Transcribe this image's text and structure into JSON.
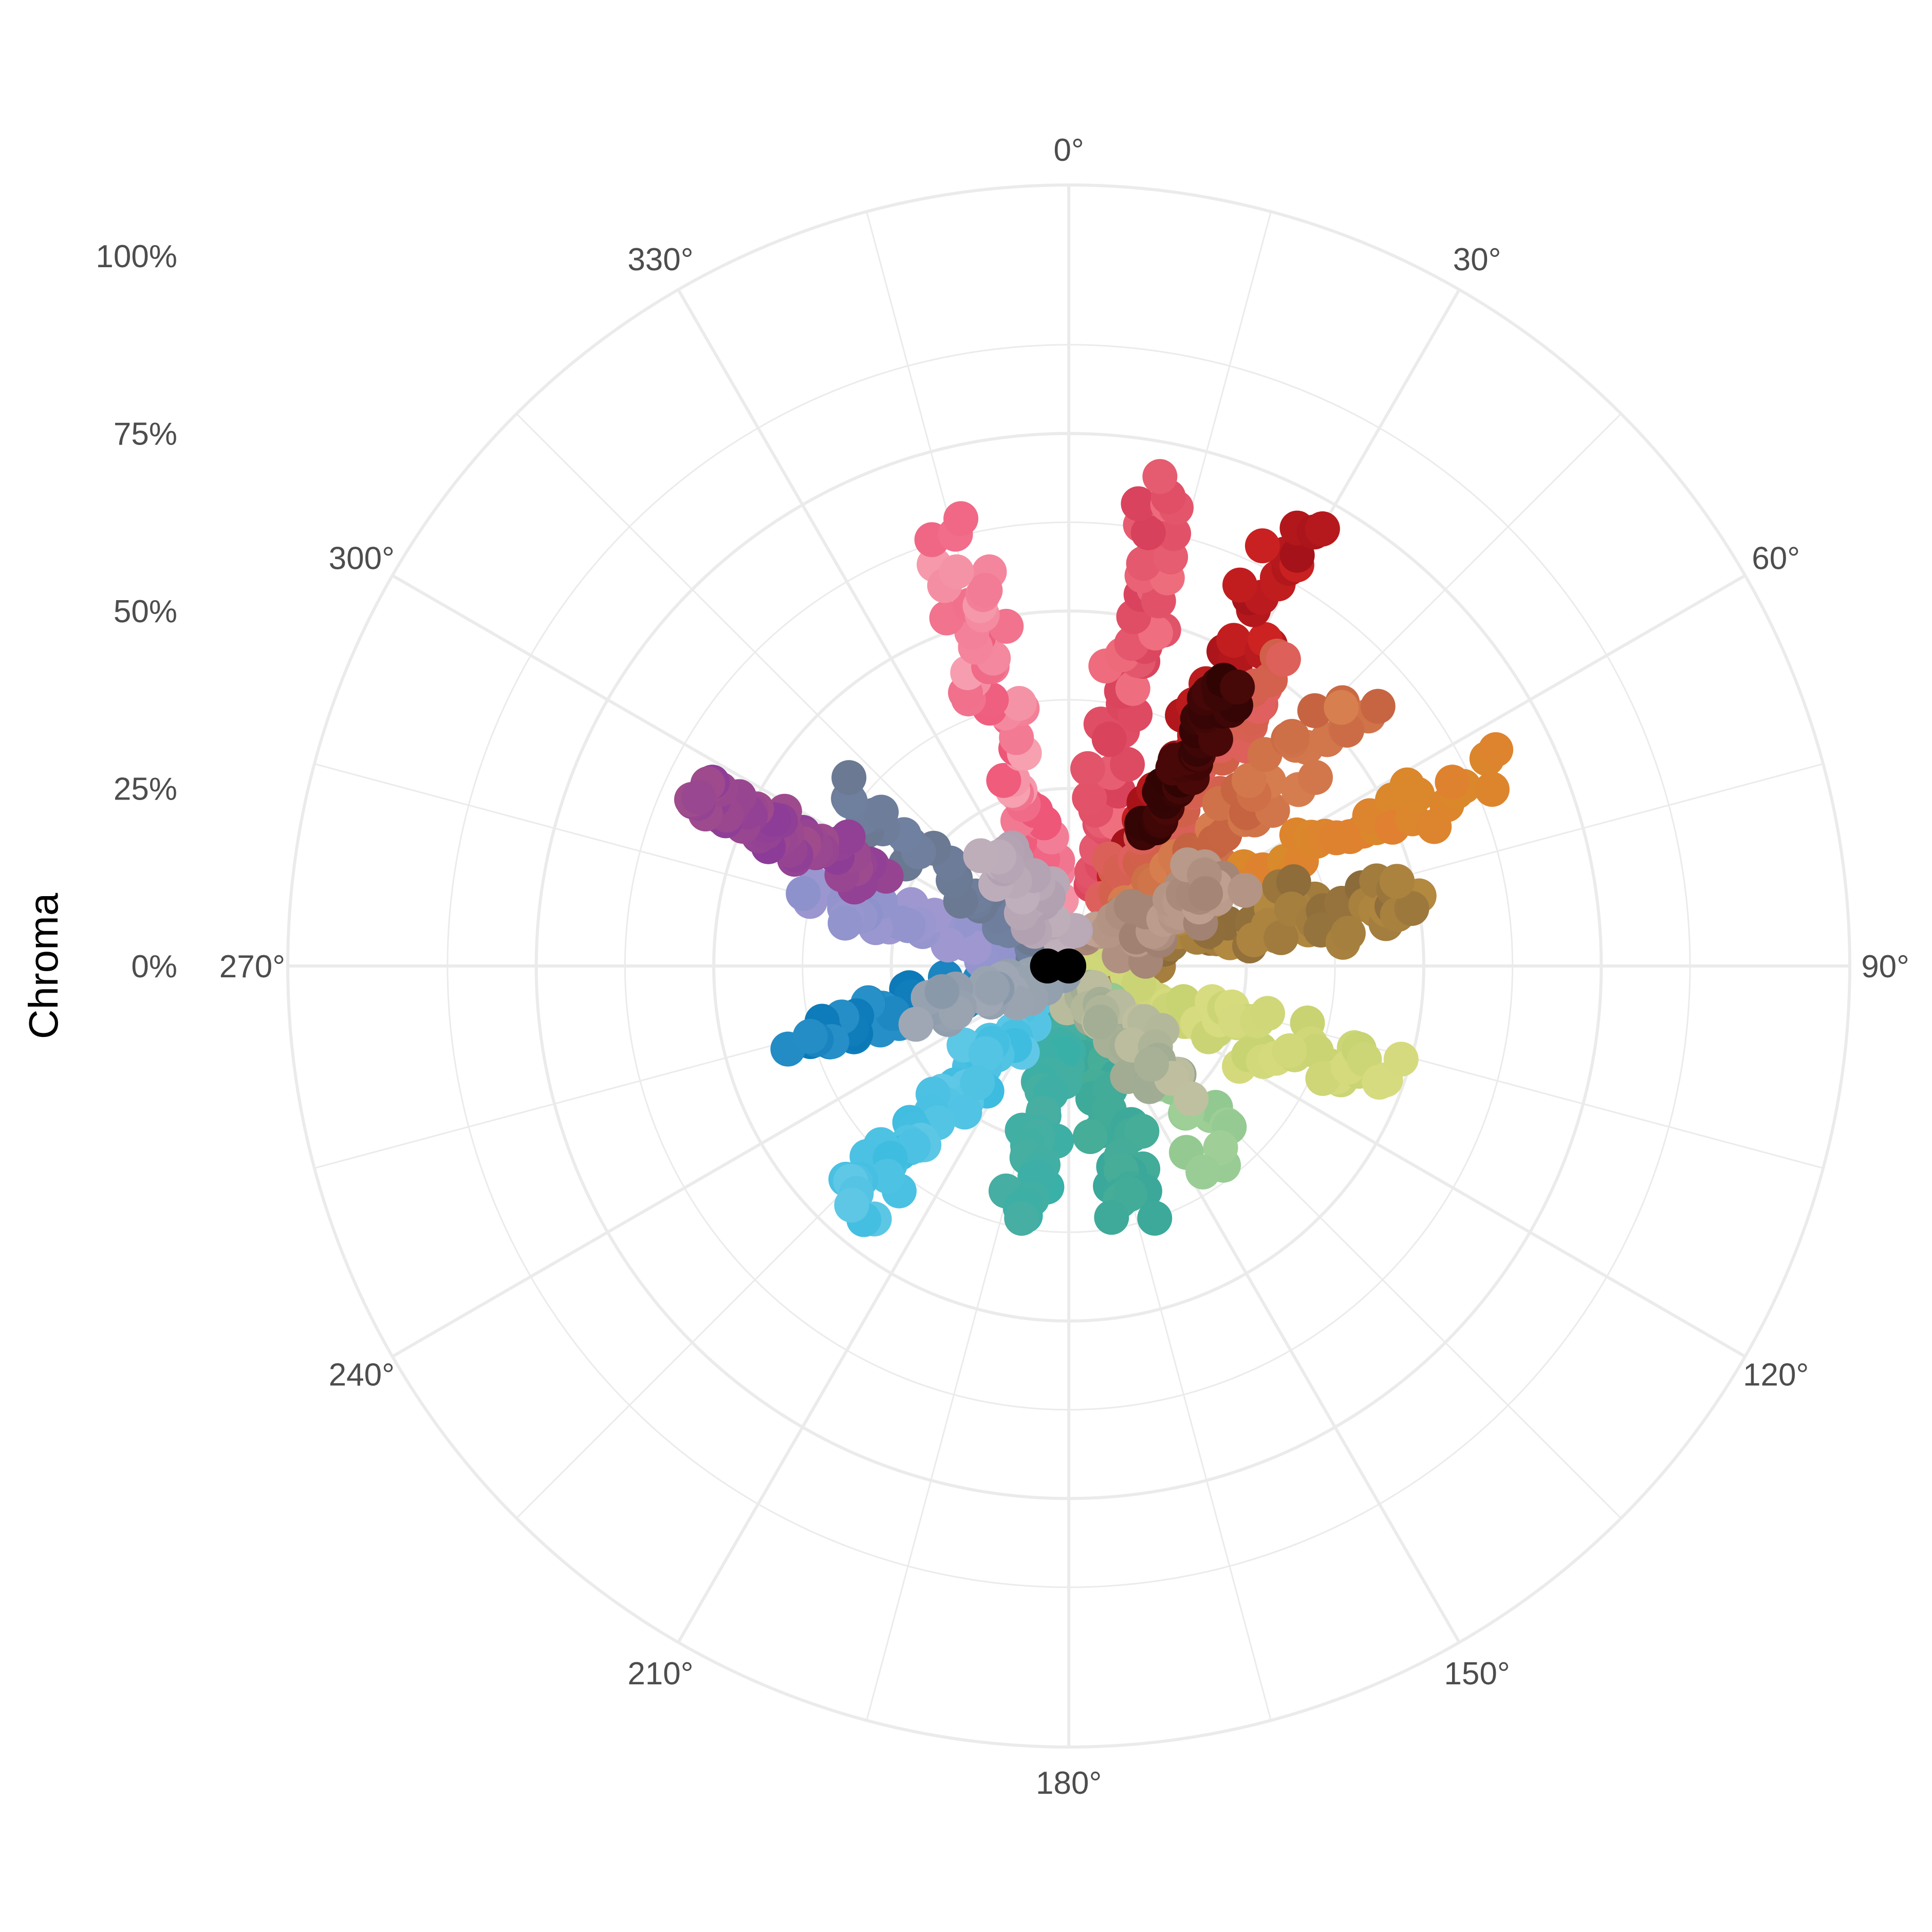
{
  "chart_data": {
    "type": "scatter",
    "coordinate_system": "polar",
    "title": "",
    "ylabel": "Chroma",
    "theta_ticks": [
      "0°",
      "30°",
      "60°",
      "90°",
      "120°",
      "150°",
      "180°",
      "210°",
      "240°",
      "270°",
      "300°",
      "330°"
    ],
    "theta_range": [
      0,
      360
    ],
    "r_ticks": [
      "0%",
      "25%",
      "50%",
      "75%",
      "100%"
    ],
    "r_range": [
      0,
      1.1
    ],
    "grid": true,
    "legend": "none",
    "clusters": [
      {
        "hue": 345,
        "chroma_range": [
          0.1,
          0.62
        ],
        "color": "#ee5577",
        "color2": "#f6a0b0",
        "n": 55,
        "spread": 0.045
      },
      {
        "hue": 12,
        "chroma_range": [
          0.12,
          0.7
        ],
        "color": "#d8405a",
        "color2": "#f07080",
        "n": 50,
        "spread": 0.035
      },
      {
        "hue": 28,
        "chroma_range": [
          0.15,
          0.72
        ],
        "color": "#cc2222",
        "color2": "#a01018",
        "n": 50,
        "spread": 0.03
      },
      {
        "hue": 35,
        "chroma_range": [
          0.1,
          0.52
        ],
        "color": "#e06060",
        "color2": "#d06048",
        "n": 45,
        "spread": 0.04
      },
      {
        "hue": 48,
        "chroma_range": [
          0.1,
          0.55
        ],
        "color": "#d88050",
        "color2": "#c46040",
        "n": 45,
        "spread": 0.045
      },
      {
        "hue": 65,
        "chroma_range": [
          0.1,
          0.66
        ],
        "color": "#e08030",
        "color2": "#d98a2a",
        "n": 40,
        "spread": 0.04
      },
      {
        "hue": 78,
        "chroma_range": [
          0.05,
          0.5
        ],
        "color": "#b48a40",
        "color2": "#8a6a3a",
        "n": 70,
        "spread": 0.06
      },
      {
        "hue": 110,
        "chroma_range": [
          0.05,
          0.48
        ],
        "color": "#d8dc80",
        "color2": "#c6d270",
        "n": 50,
        "spread": 0.05
      },
      {
        "hue": 140,
        "chroma_range": [
          0.05,
          0.35
        ],
        "color": "#a0d098",
        "color2": "#90c890",
        "n": 35,
        "spread": 0.05
      },
      {
        "hue": 165,
        "chroma_range": [
          0.05,
          0.37
        ],
        "color": "#48ae98",
        "color2": "#3aa89a",
        "n": 40,
        "spread": 0.035
      },
      {
        "hue": 190,
        "chroma_range": [
          0.05,
          0.36
        ],
        "color": "#4aaea0",
        "color2": "#38b0a8",
        "n": 45,
        "spread": 0.035
      },
      {
        "hue": 222,
        "chroma_range": [
          0.1,
          0.45
        ],
        "color": "#3cbce0",
        "color2": "#60c8e6",
        "n": 55,
        "spread": 0.045
      },
      {
        "hue": 255,
        "chroma_range": [
          0.05,
          0.4
        ],
        "color": "#2890c8",
        "color2": "#0a78b8",
        "n": 50,
        "spread": 0.035
      },
      {
        "hue": 285,
        "chroma_range": [
          0.05,
          0.38
        ],
        "color": "#8c92cc",
        "color2": "#a098d0",
        "n": 40,
        "spread": 0.045
      },
      {
        "hue": 307,
        "chroma_range": [
          0.05,
          0.4
        ],
        "color": "#6a7890",
        "color2": "#7080a0",
        "n": 30,
        "spread": 0.035
      },
      {
        "hue": 295,
        "chroma_range": [
          0.3,
          0.58
        ],
        "color": "#8c3c98",
        "color2": "#a04c8c",
        "n": 70,
        "spread": 0.03
      },
      {
        "hue": 60,
        "chroma_range": [
          0.05,
          0.25
        ],
        "color": "#a08070",
        "color2": "#c0a090",
        "n": 40,
        "spread": 0.05
      },
      {
        "hue": 140,
        "chroma_range": [
          0.03,
          0.22
        ],
        "color": "#9aa890",
        "color2": "#c0c0a0",
        "n": 40,
        "spread": 0.05
      },
      {
        "hue": 250,
        "chroma_range": [
          0.03,
          0.2
        ],
        "color": "#a0a8b4",
        "color2": "#8898a8",
        "n": 35,
        "spread": 0.05
      },
      {
        "hue": 330,
        "chroma_range": [
          0.03,
          0.2
        ],
        "color": "#b0a0b0",
        "color2": "#c0b0bc",
        "n": 30,
        "spread": 0.05
      },
      {
        "hue": 30,
        "chroma_range": [
          0.21,
          0.46
        ],
        "color": "#4a0808",
        "color2": "#300404",
        "n": 45,
        "spread": 0.008
      }
    ],
    "black_points": [
      {
        "hue": 0,
        "chroma": 0.0
      },
      {
        "hue": 270,
        "chroma": 0.03
      }
    ]
  }
}
